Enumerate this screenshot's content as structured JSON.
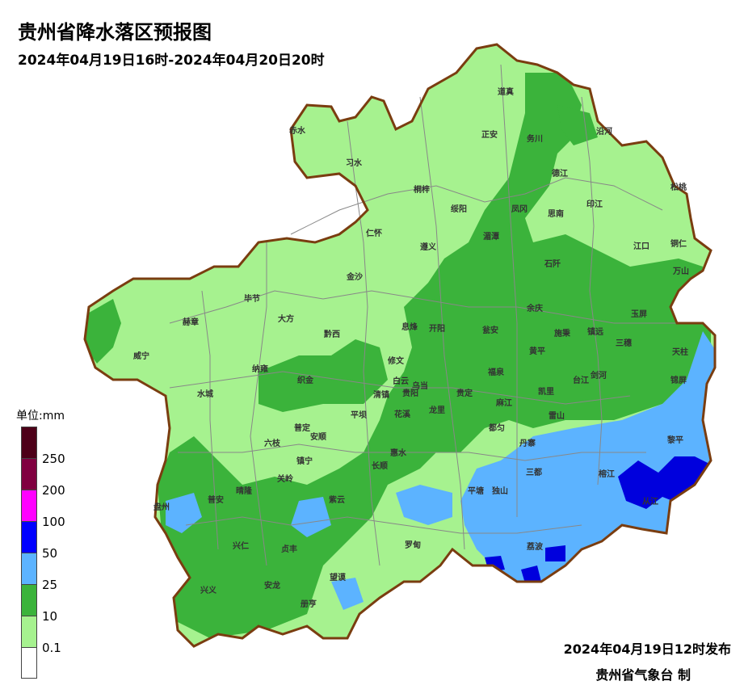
{
  "title": "贵州省降水落区预报图",
  "subtitle": "2024年04月19日16时-2024年04月20日20时",
  "footer": {
    "issued": "2024年04月19日12时发布",
    "maker": "贵州省气象台 制"
  },
  "legend": {
    "unit": "单位:mm",
    "swatches": [
      {
        "color": "#4d0018"
      },
      {
        "color": "#800040"
      },
      {
        "color": "#ff00ff"
      },
      {
        "color": "#0000ff"
      },
      {
        "color": "#5cb3ff"
      },
      {
        "color": "#3bb33b"
      },
      {
        "color": "#a6f28f"
      },
      {
        "color": "#ffffff"
      }
    ],
    "labels": [
      "250",
      "200",
      "100",
      "50",
      "25",
      "10",
      "0.1"
    ]
  },
  "colors": {
    "light_green": "#a6f28f",
    "green": "#3bb33b",
    "light_blue": "#5cb3ff",
    "blue": "#0000dd",
    "border": "#7a3d10"
  },
  "cities": [
    "道真",
    "赤水",
    "正安",
    "务川",
    "沿河",
    "习水",
    "桐梓",
    "德江",
    "松桃",
    "绥阳",
    "凤冈",
    "印江",
    "思南",
    "仁怀",
    "湄潭",
    "江口",
    "铜仁",
    "遵义",
    "石阡",
    "金沙",
    "万山",
    "毕节",
    "余庆",
    "大方",
    "赫章",
    "玉屏",
    "息烽",
    "开阳",
    "瓮安",
    "施秉",
    "镇远",
    "三穗",
    "天柱",
    "黔西",
    "威宁",
    "黄平",
    "修文",
    "锦屏",
    "纳雍",
    "织金",
    "福泉",
    "凯里",
    "台江",
    "剑河",
    "白云",
    "乌当",
    "贵阳",
    "水城",
    "清镇",
    "贵定",
    "麻江",
    "雷山",
    "平坝",
    "花溪",
    "龙里",
    "黎平",
    "普定",
    "安顺",
    "六枝",
    "都匀",
    "丹寨",
    "惠水",
    "镇宁",
    "长顺",
    "三都",
    "榕江",
    "关岭",
    "晴隆",
    "平塘",
    "独山",
    "盘州",
    "普安",
    "紫云",
    "从江",
    "兴仁",
    "罗甸",
    "荔波",
    "贞丰",
    "兴义",
    "望谟",
    "安龙",
    "册亨"
  ]
}
